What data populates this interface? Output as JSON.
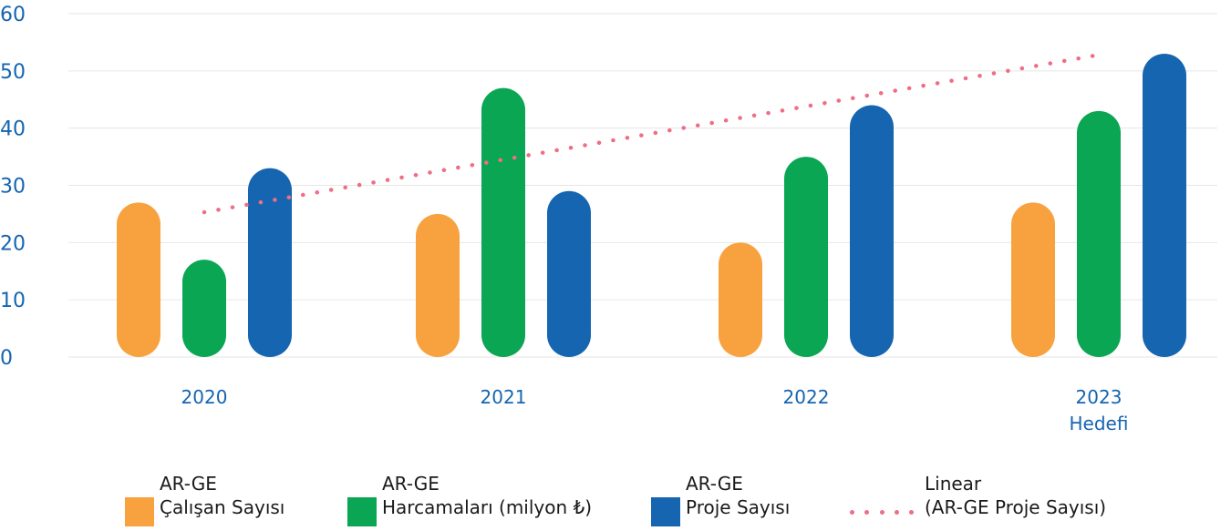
{
  "chart_data": {
    "type": "bar",
    "categories": [
      {
        "line1": "2020",
        "line2": ""
      },
      {
        "line1": "2021",
        "line2": ""
      },
      {
        "line1": "2022",
        "line2": ""
      },
      {
        "line1": "2023",
        "line2": "Hedefi"
      }
    ],
    "series": [
      {
        "name_line1": "AR-GE",
        "name_line2": "Çalışan Sayısı",
        "color": "#f7a23f",
        "values": [
          27,
          25,
          20,
          27
        ]
      },
      {
        "name_line1": "AR-GE",
        "name_line2": "Harcamaları (milyon ₺)",
        "color": "#0aa653",
        "values": [
          17,
          47,
          35,
          43
        ]
      },
      {
        "name_line1": "AR-GE",
        "name_line2": "Proje Sayısı",
        "color": "#1565b0",
        "values": [
          33,
          29,
          44,
          53
        ]
      }
    ],
    "trendline": {
      "name_line1": "Linear",
      "name_line2": "(AR-GE Proje Sayısı)",
      "color": "#ee6e86",
      "style": "dotted",
      "start": 25.3,
      "end": 52.8
    },
    "yticks": [
      "0",
      "10",
      "20",
      "30",
      "40",
      "50",
      "60"
    ],
    "ylim": [
      0,
      60
    ],
    "grid": true,
    "legend_position": "bottom",
    "axis_label_color": "#1565b0"
  }
}
